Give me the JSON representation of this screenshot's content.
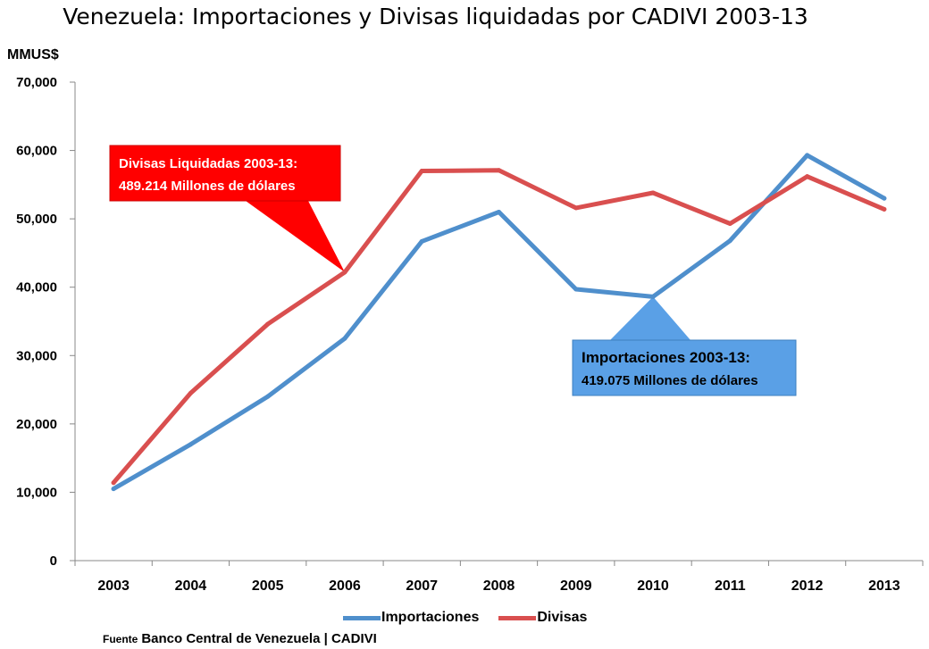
{
  "title": "Venezuela: Importaciones y Divisas liquidadas por CADIVI 2003-13",
  "unit_label": "MMUS$",
  "source": {
    "label": "Fuente",
    "text": "Banco Central de Venezuela | CADIVI"
  },
  "chart_data": {
    "type": "line",
    "title": "Venezuela: Importaciones y Divisas liquidadas por CADIVI 2003-13",
    "ylabel": "MMUS$",
    "xlabel": "",
    "x": [
      "2003",
      "2004",
      "2005",
      "2006",
      "2007",
      "2008",
      "2009",
      "2010",
      "2011",
      "2012",
      "2013"
    ],
    "ylim": [
      0,
      70000
    ],
    "yticks": [
      0,
      10000,
      20000,
      30000,
      40000,
      50000,
      60000,
      70000
    ],
    "ytick_labels": [
      "0",
      "10,000",
      "20,000",
      "30,000",
      "40,000",
      "50,000",
      "60,000",
      "70,000"
    ],
    "grid": false,
    "legend_position": "bottom",
    "series": [
      {
        "name": "Importaciones",
        "color": "#4f8fcc",
        "values": [
          10500,
          17000,
          24000,
          32500,
          46700,
          51000,
          39700,
          38600,
          46800,
          59300,
          53000
        ]
      },
      {
        "name": "Divisas",
        "color": "#d94f4f",
        "values": [
          11400,
          24500,
          34600,
          42200,
          57000,
          57100,
          51600,
          53800,
          49300,
          56200,
          51400
        ]
      }
    ],
    "annotations": [
      {
        "series": "Divisas",
        "point": "2006",
        "color": "#ff0000",
        "lines": [
          "Divisas Liquidadas 2003-13:",
          "489.214 Millones de dólares"
        ]
      },
      {
        "series": "Importaciones",
        "point": "2010",
        "color": "#5aa0e6",
        "lines": [
          "Importaciones 2003-13:",
          "419.075 Millones de dólares"
        ]
      }
    ]
  }
}
